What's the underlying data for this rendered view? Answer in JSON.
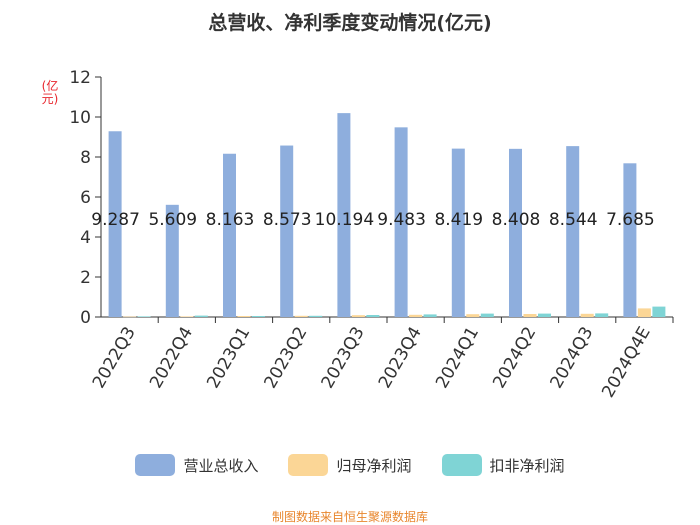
{
  "title": "总营收、净利季度变动情况(亿元)",
  "unit_label": "(亿元)",
  "source": "制图数据来自恒生聚源数据库",
  "chart_data": {
    "type": "bar",
    "categories": [
      "2022Q3",
      "2022Q4",
      "2023Q1",
      "2023Q2",
      "2023Q3",
      "2023Q4",
      "2024Q1",
      "2024Q2",
      "2024Q3",
      "2024Q4E"
    ],
    "series": [
      {
        "name": "营业总收入",
        "color": "#8eaedd",
        "values": [
          9.287,
          5.609,
          8.163,
          8.573,
          10.194,
          9.483,
          8.419,
          8.408,
          8.544,
          7.685
        ]
      },
      {
        "name": "归母净利润",
        "color": "#fbd696",
        "values": [
          0.02,
          0.03,
          0.05,
          0.06,
          0.09,
          0.11,
          0.14,
          0.15,
          0.16,
          0.43
        ]
      },
      {
        "name": "扣非净利润",
        "color": "#7fd4d5",
        "values": [
          0.03,
          0.07,
          0.05,
          0.06,
          0.1,
          0.13,
          0.17,
          0.17,
          0.18,
          0.52
        ]
      }
    ],
    "data_labels": [
      "9.287",
      "5.609",
      "8.163",
      "8.573",
      "10.194",
      "9.483",
      "8.419",
      "8.408",
      "8.544",
      "7.685"
    ],
    "ylim": [
      0,
      12
    ],
    "yticks": [
      0,
      2,
      4,
      6,
      8,
      10,
      12
    ],
    "legend_position": "bottom"
  }
}
